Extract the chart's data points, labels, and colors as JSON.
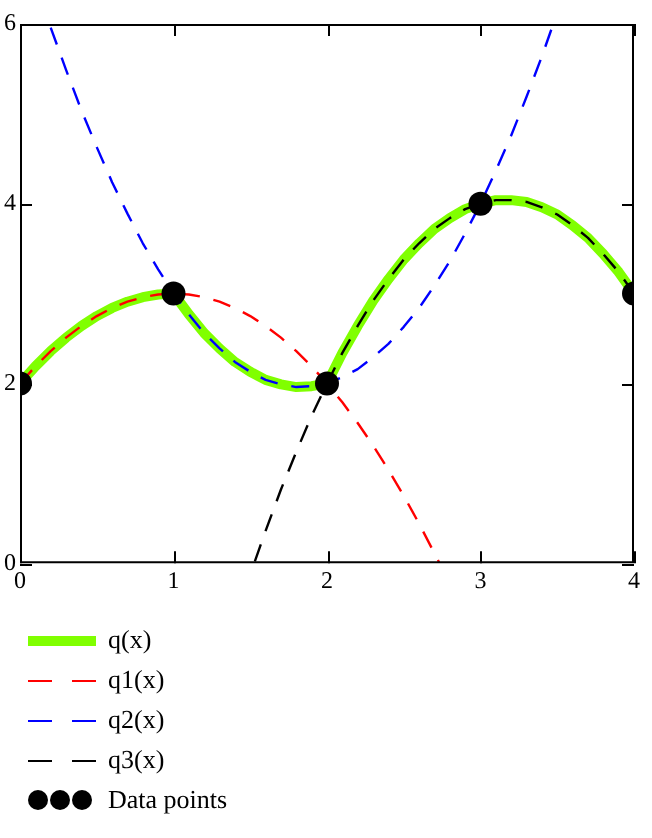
{
  "chart_data": {
    "type": "line",
    "xlim": [
      0,
      4
    ],
    "ylim": [
      0,
      6
    ],
    "xticks": [
      0,
      1,
      2,
      3,
      4
    ],
    "yticks": [
      0,
      2,
      4,
      6
    ],
    "grid": false,
    "legend": "bottom left",
    "series": [
      {
        "name": "q(x)",
        "color": "#80ff00",
        "line_style": "solid",
        "marker": "none",
        "x": [
          0,
          0.1,
          0.2,
          0.3,
          0.4,
          0.5,
          0.6,
          0.7,
          0.8,
          0.9,
          1,
          1.1,
          1.2,
          1.3,
          1.4,
          1.5,
          1.6,
          1.7,
          1.8,
          1.9,
          2,
          2.1,
          2.2,
          2.3,
          2.4,
          2.5,
          2.6,
          2.7,
          2.8,
          2.9,
          3,
          3.1,
          3.2,
          3.3,
          3.4,
          3.5,
          3.6,
          3.7,
          3.8,
          3.9,
          4
        ],
        "values": [
          2,
          2.19,
          2.36,
          2.51,
          2.64,
          2.75,
          2.84,
          2.91,
          2.96,
          2.99,
          3,
          2.77,
          2.56,
          2.39,
          2.24,
          2.13,
          2.04,
          1.99,
          1.96,
          1.97,
          2,
          2.34,
          2.64,
          2.92,
          3.16,
          3.38,
          3.56,
          3.72,
          3.84,
          3.94,
          4,
          4.04,
          4.04,
          4.02,
          3.96,
          3.88,
          3.76,
          3.62,
          3.44,
          3.24,
          3
        ]
      },
      {
        "name": "q1(x)",
        "color": "#ff0000",
        "line_style": "dashed",
        "marker": "none",
        "x": [
          0,
          0.1,
          0.2,
          0.3,
          0.4,
          0.5,
          0.6,
          0.7,
          0.8,
          0.9,
          1,
          1.1,
          1.2,
          1.3,
          1.4,
          1.5,
          1.6,
          1.7,
          1.8,
          1.9,
          2,
          2.1,
          2.2,
          2.3,
          2.4,
          2.5,
          2.6,
          2.7,
          2.73
        ],
        "values": [
          2,
          2.19,
          2.36,
          2.51,
          2.64,
          2.75,
          2.84,
          2.91,
          2.96,
          2.99,
          3,
          2.99,
          2.96,
          2.91,
          2.84,
          2.75,
          2.64,
          2.51,
          2.36,
          2.19,
          2,
          1.79,
          1.56,
          1.31,
          1.04,
          0.75,
          0.44,
          0.11,
          0.01
        ]
      },
      {
        "name": "q2(x)",
        "color": "#0000ff",
        "line_style": "dashed",
        "marker": "none",
        "x": [
          0.2,
          0.3,
          0.4,
          0.5,
          0.6,
          0.7,
          0.8,
          0.9,
          1,
          1.1,
          1.2,
          1.3,
          1.4,
          1.5,
          1.6,
          1.7,
          1.8,
          1.9,
          2,
          2.1,
          2.2,
          2.3,
          2.4,
          2.5,
          2.6,
          2.7,
          2.8,
          2.9,
          3,
          3.1,
          3.2,
          3.3,
          3.4,
          3.47
        ],
        "values": [
          5.96,
          5.49,
          5.04,
          4.63,
          4.24,
          3.89,
          3.56,
          3.27,
          3,
          2.77,
          2.56,
          2.39,
          2.24,
          2.13,
          2.04,
          1.99,
          1.96,
          1.97,
          2,
          2.07,
          2.16,
          2.29,
          2.44,
          2.63,
          2.84,
          3.09,
          3.36,
          3.67,
          4,
          4.37,
          4.76,
          5.19,
          5.64,
          5.98
        ]
      },
      {
        "name": "q3(x)",
        "color": "#000000",
        "line_style": "dashed",
        "marker": "none",
        "x": [
          1.53,
          1.6,
          1.7,
          1.8,
          1.9,
          2,
          2.1,
          2.2,
          2.3,
          2.4,
          2.5,
          2.6,
          2.7,
          2.8,
          2.9,
          3,
          3.1,
          3.2,
          3.3,
          3.4,
          3.5,
          3.6,
          3.7,
          3.8,
          3.9,
          4
        ],
        "values": [
          0.02,
          0.36,
          0.82,
          1.24,
          1.64,
          2,
          2.34,
          2.64,
          2.92,
          3.16,
          3.38,
          3.56,
          3.72,
          3.84,
          3.94,
          4,
          4.04,
          4.04,
          4.02,
          3.96,
          3.88,
          3.76,
          3.62,
          3.44,
          3.24,
          3
        ]
      },
      {
        "name": "Data points",
        "type": "scatter",
        "color": "#000000",
        "marker": "circle",
        "x": [
          0,
          1,
          2,
          3,
          4
        ],
        "values": [
          2,
          3,
          2,
          4,
          3
        ]
      }
    ]
  }
}
